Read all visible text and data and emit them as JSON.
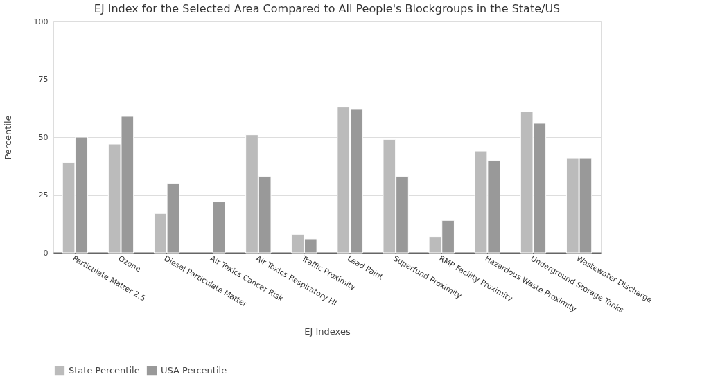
{
  "chart_data": {
    "type": "bar",
    "title": "EJ Index for the Selected Area Compared to All People's Blockgroups in the State/US",
    "xlabel": "EJ Indexes",
    "ylabel": "Percentile",
    "categories": [
      "Particulate Matter 2.5",
      "Ozone",
      "Diesel Particulate Matter",
      "Air Toxics Cancer Risk",
      "Air Toxics Respiratory HI",
      "Traffic Proximity",
      "Lead Paint",
      "Superfund Proximity",
      "RMP Facility Proximity",
      "Hazardous Waste Proximity",
      "Underground Storage Tanks",
      "Wastewater Discharge"
    ],
    "series": [
      {
        "name": "State Percentile",
        "color": "#bbbbbb",
        "values": [
          39,
          47,
          17,
          null,
          51,
          8,
          63,
          49,
          7,
          44,
          61,
          41
        ]
      },
      {
        "name": "USA Percentile",
        "color": "#999999",
        "values": [
          50,
          59,
          30,
          22,
          33,
          6,
          62,
          33,
          14,
          40,
          56,
          41
        ]
      }
    ],
    "ylim": [
      0,
      100
    ],
    "yticks": [
      0,
      25,
      50,
      75,
      100
    ],
    "grid": "y",
    "legend": "bottom"
  }
}
